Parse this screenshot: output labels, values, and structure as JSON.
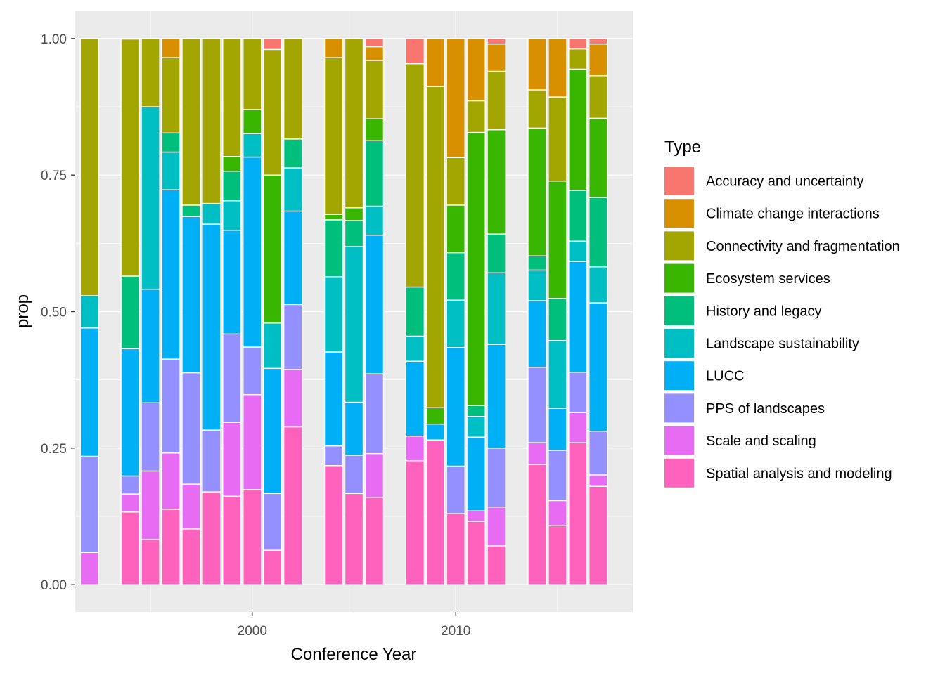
{
  "chart_data": {
    "type": "bar",
    "stacked": true,
    "position": "fill",
    "xlabel": "Conference Year",
    "ylabel": "prop",
    "x_ticks": [
      2000,
      2010
    ],
    "y_ticks": [
      "0.00",
      "0.25",
      "0.50",
      "0.75",
      "1.00"
    ],
    "xlim": [
      1991.3,
      2018.7
    ],
    "ylim": [
      -0.05,
      1.05
    ],
    "grid": true,
    "legend_position": "right",
    "legend": {
      "title": "Type",
      "entries": [
        {
          "name": "Accuracy and uncertainty",
          "color": "#F8766D"
        },
        {
          "name": "Climate change interactions",
          "color": "#D89000"
        },
        {
          "name": "Connectivity and fragmentation",
          "color": "#A3A500"
        },
        {
          "name": "Ecosystem services",
          "color": "#39B600"
        },
        {
          "name": "History and legacy",
          "color": "#00BF7D"
        },
        {
          "name": "Landscape sustainability",
          "color": "#00BFC4"
        },
        {
          "name": "LUCC",
          "color": "#00B0F6"
        },
        {
          "name": "PPS of landscapes",
          "color": "#9590FF"
        },
        {
          "name": "Scale and scaling",
          "color": "#E76BF3"
        },
        {
          "name": "Spatial analysis and modeling",
          "color": "#FF62BC"
        }
      ]
    },
    "categories_order_bottom_to_top": [
      "Spatial analysis and modeling",
      "Scale and scaling",
      "PPS of landscapes",
      "LUCC",
      "Landscape sustainability",
      "History and legacy",
      "Ecosystem services",
      "Connectivity and fragmentation",
      "Climate change interactions",
      "Accuracy and uncertainty"
    ],
    "bars": [
      {
        "year": 1992,
        "values": [
          0,
          0.059,
          0.176,
          0.235,
          0.059,
          0,
          0,
          0.471,
          0,
          0
        ]
      },
      {
        "year": 1994,
        "values": [
          0.133,
          0.033,
          0.033,
          0.233,
          0,
          0.133,
          0,
          0.434,
          0,
          0
        ]
      },
      {
        "year": 1995,
        "values": [
          0.083,
          0.125,
          0.125,
          0.208,
          0.334,
          0,
          0,
          0.125,
          0,
          0
        ]
      },
      {
        "year": 1996,
        "values": [
          0.138,
          0.103,
          0.172,
          0.31,
          0.069,
          0.035,
          0,
          0.138,
          0.035,
          0
        ]
      },
      {
        "year": 1997,
        "values": [
          0.102,
          0.082,
          0.204,
          0.286,
          0,
          0.021,
          0,
          0.305,
          0,
          0
        ]
      },
      {
        "year": 1998,
        "values": [
          0.17,
          0,
          0.113,
          0.377,
          0.038,
          0,
          0,
          0.302,
          0,
          0
        ]
      },
      {
        "year": 1999,
        "values": [
          0.162,
          0.135,
          0.162,
          0.19,
          0.054,
          0.054,
          0.027,
          0.216,
          0,
          0
        ]
      },
      {
        "year": 2000,
        "values": [
          0.174,
          0.174,
          0.087,
          0.348,
          0.043,
          0,
          0.044,
          0.13,
          0,
          0
        ]
      },
      {
        "year": 2001,
        "values": [
          0.063,
          0,
          0.104,
          0.229,
          0.083,
          0,
          0.271,
          0.23,
          0,
          0.02
        ]
      },
      {
        "year": 2002,
        "values": [
          0.289,
          0.105,
          0.119,
          0.171,
          0.079,
          0.053,
          0,
          0.184,
          0,
          0
        ]
      },
      {
        "year": 2004,
        "values": [
          0.218,
          0,
          0.036,
          0.172,
          0.138,
          0.104,
          0.01,
          0.287,
          0.035,
          0
        ]
      },
      {
        "year": 2005,
        "values": [
          0.167,
          0,
          0.07,
          0.097,
          0.285,
          0.048,
          0.023,
          0.31,
          0,
          0
        ]
      },
      {
        "year": 2006,
        "values": [
          0.16,
          0.08,
          0.146,
          0.254,
          0.053,
          0.12,
          0.04,
          0.107,
          0.025,
          0.015
        ]
      },
      {
        "year": 2008,
        "values": [
          0.227,
          0.045,
          0,
          0.137,
          0.046,
          0.09,
          0,
          0.409,
          0,
          0.046
        ]
      },
      {
        "year": 2009,
        "values": [
          0.265,
          0,
          0,
          0.029,
          0,
          0,
          0.03,
          0.588,
          0.088,
          0
        ]
      },
      {
        "year": 2010,
        "values": [
          0.13,
          0,
          0.087,
          0.217,
          0.087,
          0.087,
          0.087,
          0.087,
          0.218,
          0
        ]
      },
      {
        "year": 2011,
        "values": [
          0.116,
          0.019,
          0,
          0.135,
          0.038,
          0.02,
          0.5,
          0.058,
          0.114,
          0
        ]
      },
      {
        "year": 2012,
        "values": [
          0.071,
          0.071,
          0.108,
          0.19,
          0.131,
          0.071,
          0.191,
          0.107,
          0.05,
          0.01
        ]
      },
      {
        "year": 2014,
        "values": [
          0.22,
          0.04,
          0.138,
          0.122,
          0.056,
          0.026,
          0.234,
          0.07,
          0.094,
          0
        ]
      },
      {
        "year": 2015,
        "values": [
          0.108,
          0.046,
          0.092,
          0.077,
          0.124,
          0.077,
          0.215,
          0.154,
          0.107,
          0
        ]
      },
      {
        "year": 2016,
        "values": [
          0.26,
          0.055,
          0.074,
          0.203,
          0.037,
          0.093,
          0.222,
          0.037,
          0,
          0.019
        ]
      },
      {
        "year": 2017,
        "values": [
          0.18,
          0.021,
          0.08,
          0.235,
          0.066,
          0.127,
          0.145,
          0.078,
          0.058,
          0.01
        ]
      }
    ]
  }
}
